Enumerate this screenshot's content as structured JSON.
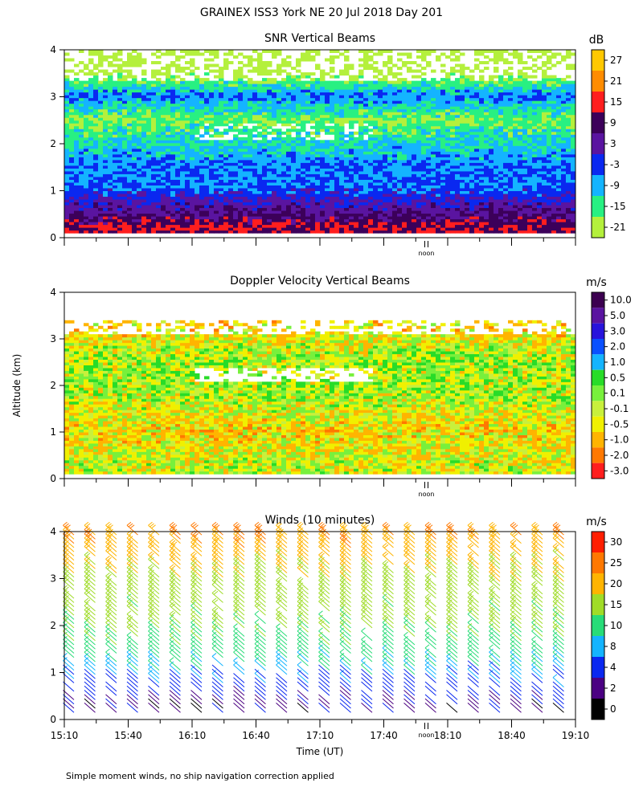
{
  "title": "GRAINEX ISS3 York NE  20 Jul 2018 Day 201",
  "footnote": "Simple moment winds, no ship navigation correction applied",
  "ylabel": "Altitude (km)",
  "xlabel": "Time (UT)",
  "noon_label": "noon",
  "chart_data": [
    {
      "type": "heatmap",
      "title": "SNR Vertical Beams",
      "ylim": [
        0,
        4
      ],
      "yticks": [
        "0",
        "1",
        "2",
        "3",
        "4"
      ],
      "xlim": [
        "15:10",
        "19:10"
      ],
      "colorbar": {
        "unit": "dB",
        "labels": [
          "27",
          "21",
          "15",
          "9",
          "3",
          "-3",
          "-9",
          "-15",
          "-21"
        ],
        "colors": [
          "#ffc800",
          "#ff8c00",
          "#ff1e1e",
          "#3c005a",
          "#5a14a0",
          "#0a28f0",
          "#14b4ff",
          "#28f082",
          "#b4f03c"
        ]
      },
      "profile": [
        {
          "z": 0.2,
          "value": 15
        },
        {
          "z": 0.5,
          "value": 9
        },
        {
          "z": 0.8,
          "value": 3
        },
        {
          "z": 1.1,
          "value": -3
        },
        {
          "z": 1.5,
          "value": -3
        },
        {
          "z": 2.0,
          "value": -9
        },
        {
          "z": 2.5,
          "value": -15
        },
        {
          "z": 3.0,
          "value": -3
        },
        {
          "z": 3.5,
          "value": -21
        }
      ]
    },
    {
      "type": "heatmap",
      "title": "Doppler Velocity Vertical Beams",
      "ylim": [
        0,
        4
      ],
      "yticks": [
        "0",
        "1",
        "2",
        "3",
        "4"
      ],
      "xlim": [
        "15:10",
        "19:10"
      ],
      "colorbar": {
        "unit": "m/s",
        "labels": [
          "10.0",
          "5.0",
          "3.0",
          "2.0",
          "1.0",
          "0.5",
          "0.1",
          "-0.1",
          "-0.5",
          "-1.0",
          "-2.0",
          "-3.0"
        ],
        "colors": [
          "#3c0050",
          "#5a14a0",
          "#2814dc",
          "#0a50ff",
          "#14b4ff",
          "#28dc28",
          "#78f03c",
          "#c8f03c",
          "#f0f000",
          "#ffb400",
          "#ff7800",
          "#ff1e1e"
        ]
      },
      "profile": [
        {
          "z": 0.3,
          "value": -0.1
        },
        {
          "z": 1.0,
          "value": -0.5
        },
        {
          "z": 1.8,
          "value": 0.1
        },
        {
          "z": 2.6,
          "value": 0.1
        },
        {
          "z": 3.2,
          "value": -0.5
        }
      ]
    },
    {
      "type": "scatter",
      "title": "Winds (10 minutes)",
      "ylim": [
        0,
        4
      ],
      "yticks": [
        "0",
        "1",
        "2",
        "3",
        "4"
      ],
      "x": [
        "15:10",
        "15:20",
        "15:30",
        "15:40",
        "15:50",
        "16:00",
        "16:10",
        "16:20",
        "16:30",
        "16:40",
        "16:50",
        "17:00",
        "17:10",
        "17:20",
        "17:30",
        "17:40",
        "17:50",
        "18:00",
        "18:10",
        "18:20",
        "18:30",
        "18:40",
        "18:50",
        "19:00"
      ],
      "xticks": [
        "15:10",
        "15:40",
        "16:10",
        "16:40",
        "17:10",
        "17:40",
        "18:10",
        "18:40",
        "19:10"
      ],
      "colorbar": {
        "unit": "m/s",
        "labels": [
          "30",
          "25",
          "20",
          "15",
          "10",
          "8",
          "4",
          "2",
          "0"
        ],
        "colors": [
          "#ff1e00",
          "#ff7800",
          "#ffb400",
          "#a0dc28",
          "#28dc78",
          "#14b4ff",
          "#0a28f0",
          "#4b0082",
          "#000000"
        ]
      },
      "speed_profile": [
        {
          "z": 0.2,
          "speed": 3
        },
        {
          "z": 0.6,
          "speed": 6
        },
        {
          "z": 1.0,
          "speed": 9
        },
        {
          "z": 1.5,
          "speed": 13
        },
        {
          "z": 2.0,
          "speed": 16
        },
        {
          "z": 2.5,
          "speed": 17
        },
        {
          "z": 3.0,
          "speed": 19
        },
        {
          "z": 3.5,
          "speed": 22
        },
        {
          "z": 4.0,
          "speed": 26
        }
      ]
    }
  ]
}
